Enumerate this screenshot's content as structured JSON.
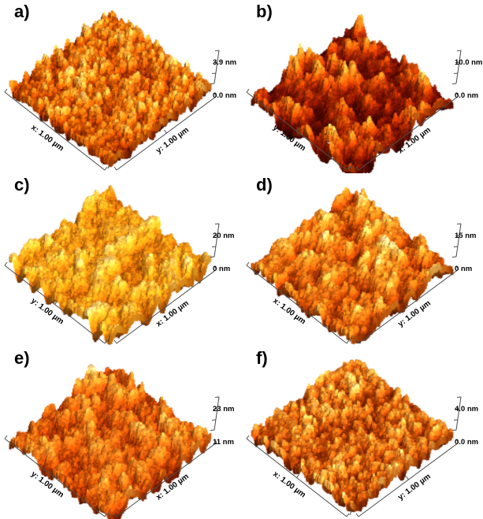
{
  "figure": {
    "background": "#ffffff",
    "text_color": "#000000",
    "axis_line_color": "#4c4c4c",
    "description": "Six-panel AFM 3D surface topography figure"
  },
  "panels": [
    {
      "id": "a",
      "label": "a)",
      "left_axis": "x: 1.00 µm",
      "right_axis": "y: 1.00 µm",
      "z_max": "3.9 nm",
      "z_min": "0.0 nm",
      "render": {
        "seed": 11,
        "fx": 26,
        "fy": 26,
        "gamma": 1.15,
        "height": 22,
        "mask": 0.28,
        "palette": [
          "#5f1600",
          "#992d00",
          "#cc5200",
          "#ec7d17",
          "#ffb347",
          "#ffe9b8"
        ]
      }
    },
    {
      "id": "b",
      "label": "b)",
      "left_axis": "y: 1.00 µm",
      "right_axis": "x: 1.00 µm",
      "z_max": "10.0 nm",
      "z_min": "0.0 nm",
      "render": {
        "seed": 23,
        "fx": 11,
        "fy": 11,
        "gamma": 1.7,
        "height": 38,
        "mask": 0.6,
        "palette": [
          "#420600",
          "#7d1400",
          "#b23400",
          "#e06410",
          "#ff9f2e",
          "#ffdf9e"
        ]
      }
    },
    {
      "id": "c",
      "label": "c)",
      "left_axis": "y: 1.00 µm",
      "right_axis": "x: 1.00 µm",
      "z_max": "20 nm",
      "z_min": "0 nm",
      "render": {
        "seed": 37,
        "fx": 13,
        "fy": 13,
        "gamma": 0.85,
        "height": 33,
        "mask": 0.3,
        "palette": [
          "#a03c00",
          "#c45f06",
          "#e8820f",
          "#fca01c",
          "#ffc252",
          "#fff0c4"
        ]
      }
    },
    {
      "id": "d",
      "label": "d)",
      "left_axis": "x: 1.00 µm",
      "right_axis": "y: 1.00 µm",
      "z_max": "15 nm",
      "z_min": "0 nm",
      "render": {
        "seed": 49,
        "fx": 18,
        "fy": 12,
        "gamma": 1.2,
        "height": 30,
        "mask": 0.42,
        "palette": [
          "#6e1c00",
          "#a83800",
          "#d65f0e",
          "#f2871f",
          "#ffba52",
          "#ffedc0"
        ]
      }
    },
    {
      "id": "e",
      "label": "e)",
      "left_axis": "y: 1.00 µm",
      "right_axis": "x: 1.00 µm",
      "z_max": "23 nm",
      "z_min": "11 nm",
      "render": {
        "seed": 61,
        "fx": 15,
        "fy": 15,
        "gamma": 1.05,
        "height": 32,
        "mask": 0.35,
        "palette": [
          "#7c1a00",
          "#b13a02",
          "#d95a0c",
          "#ef7f1e",
          "#ffac42",
          "#ffe3ae"
        ]
      }
    },
    {
      "id": "f",
      "label": "f)",
      "left_axis": "x: 1.00 µm",
      "right_axis": "y: 1.00 µm",
      "z_max": "4.0 nm",
      "z_min": "0.0 nm",
      "render": {
        "seed": 73,
        "fx": 24,
        "fy": 24,
        "gamma": 1.2,
        "height": 20,
        "mask": 0.3,
        "palette": [
          "#631a00",
          "#9e3300",
          "#cf5a0e",
          "#ee8322",
          "#ffb54e",
          "#ffeaba"
        ]
      }
    }
  ],
  "chart_data": [
    {
      "panel": "a",
      "type": "heatmap",
      "subtype": "3d-afm-topography",
      "x_axis": {
        "label": "x",
        "range": "1.00 µm"
      },
      "y_axis": {
        "label": "y",
        "range": "1.00 µm"
      },
      "z_scale_nm": {
        "min": 0.0,
        "max": 3.9
      },
      "left_axis_in_view": "x",
      "right_axis_in_view": "y",
      "colormap": "dark red to orange to pale yellow"
    },
    {
      "panel": "b",
      "type": "heatmap",
      "subtype": "3d-afm-topography",
      "x_axis": {
        "label": "x",
        "range": "1.00 µm"
      },
      "y_axis": {
        "label": "y",
        "range": "1.00 µm"
      },
      "z_scale_nm": {
        "min": 0.0,
        "max": 10.0
      },
      "left_axis_in_view": "y",
      "right_axis_in_view": "x",
      "colormap": "dark red to orange to pale yellow"
    },
    {
      "panel": "c",
      "type": "heatmap",
      "subtype": "3d-afm-topography",
      "x_axis": {
        "label": "x",
        "range": "1.00 µm"
      },
      "y_axis": {
        "label": "y",
        "range": "1.00 µm"
      },
      "z_scale_nm": {
        "min": 0,
        "max": 20
      },
      "left_axis_in_view": "y",
      "right_axis_in_view": "x",
      "colormap": "bright orange to pale yellow"
    },
    {
      "panel": "d",
      "type": "heatmap",
      "subtype": "3d-afm-topography",
      "x_axis": {
        "label": "x",
        "range": "1.00 µm"
      },
      "y_axis": {
        "label": "y",
        "range": "1.00 µm"
      },
      "z_scale_nm": {
        "min": 0,
        "max": 15
      },
      "left_axis_in_view": "x",
      "right_axis_in_view": "y",
      "colormap": "dark red to orange to pale yellow"
    },
    {
      "panel": "e",
      "type": "heatmap",
      "subtype": "3d-afm-topography",
      "x_axis": {
        "label": "x",
        "range": "1.00 µm"
      },
      "y_axis": {
        "label": "y",
        "range": "1.00 µm"
      },
      "z_scale_nm": {
        "min": 11,
        "max": 23
      },
      "left_axis_in_view": "y",
      "right_axis_in_view": "x",
      "colormap": "deep orange to pale yellow"
    },
    {
      "panel": "f",
      "type": "heatmap",
      "subtype": "3d-afm-topography",
      "x_axis": {
        "label": "x",
        "range": "1.00 µm"
      },
      "y_axis": {
        "label": "y",
        "range": "1.00 µm"
      },
      "z_scale_nm": {
        "min": 0.0,
        "max": 4.0
      },
      "left_axis_in_view": "x",
      "right_axis_in_view": "y",
      "colormap": "dark red to orange to pale yellow"
    }
  ]
}
